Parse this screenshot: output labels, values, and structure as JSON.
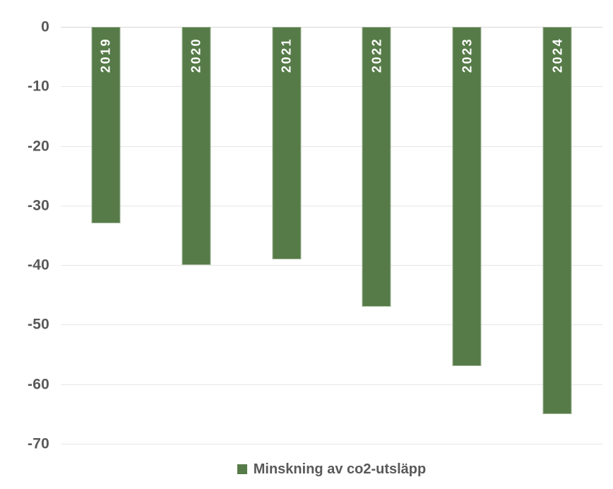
{
  "chart_data": {
    "type": "bar",
    "categories": [
      "2019",
      "2020",
      "2021",
      "2022",
      "2023",
      "2024"
    ],
    "values": [
      -33,
      -40,
      -39,
      -47,
      -57,
      -65
    ],
    "title": "",
    "xlabel": "",
    "ylabel": "",
    "ylim": [
      -70,
      0
    ],
    "ytick_step": 10,
    "yticks": [
      0,
      -10,
      -20,
      -30,
      -40,
      -50,
      -60,
      -70
    ],
    "grid": true,
    "legend": "Minskning av co2-utsläpp",
    "legend_position": "bottom",
    "bar_label_position": "inside-top-rotated-up",
    "colors": {
      "bar": "#567B48",
      "bar_label_text": "#FFFFFF",
      "axis_label_text": "#595959",
      "gridline": "#E6E6E6",
      "zero_line": "#D8D8D8",
      "legend_text": "#595959",
      "background": "#FFFFFF"
    }
  }
}
